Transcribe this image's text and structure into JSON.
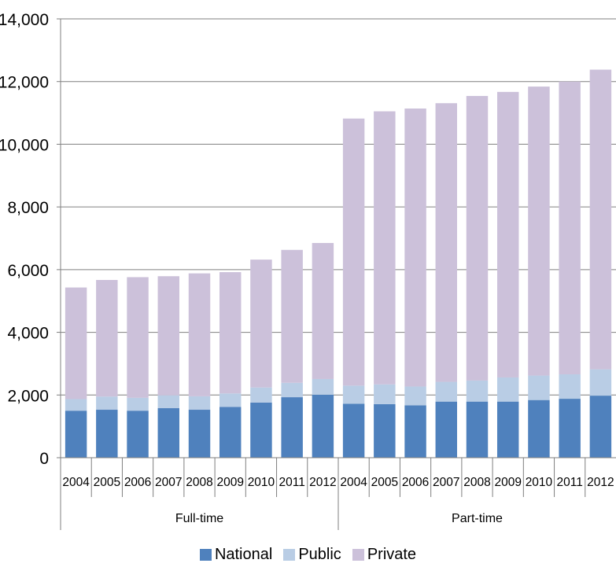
{
  "chart_data": {
    "type": "bar",
    "stacked": true,
    "ylim": [
      0,
      14000
    ],
    "yticks": [
      "0",
      "2,000",
      "4,000",
      "6,000",
      "8,000",
      "10,000",
      "12,000",
      "14,000"
    ],
    "groups": [
      {
        "label": "Full-time",
        "categories": [
          "2004",
          "2005",
          "2006",
          "2007",
          "2008",
          "2009",
          "2010",
          "2011",
          "2012"
        ]
      },
      {
        "label": "Part-time",
        "categories": [
          "2004",
          "2005",
          "2006",
          "2007",
          "2008",
          "2009",
          "2010",
          "2011",
          "2012"
        ]
      }
    ],
    "series": [
      {
        "name": "National",
        "color": "#4f81bd",
        "values": [
          1500,
          1530,
          1500,
          1580,
          1530,
          1620,
          1760,
          1930,
          2010,
          1720,
          1710,
          1670,
          1790,
          1790,
          1790,
          1840,
          1880,
          1980
        ]
      },
      {
        "name": "Public",
        "color": "#b9cde5",
        "values": [
          370,
          420,
          410,
          410,
          430,
          430,
          480,
          460,
          500,
          580,
          630,
          600,
          630,
          670,
          770,
          780,
          780,
          840
        ]
      },
      {
        "name": "Private",
        "color": "#ccc1da",
        "values": [
          3560,
          3720,
          3850,
          3800,
          3920,
          3870,
          4080,
          4240,
          4340,
          8520,
          8710,
          8870,
          8890,
          9080,
          9110,
          9220,
          9340,
          9560
        ]
      }
    ],
    "legend_position": "bottom",
    "grid": true
  }
}
